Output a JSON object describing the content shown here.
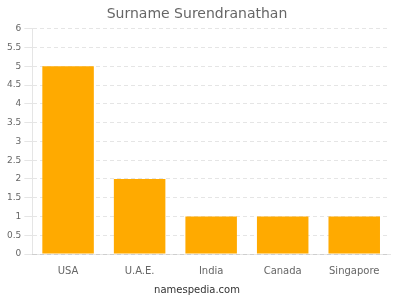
{
  "chart_data": {
    "type": "bar",
    "title": "Surname Surendranathan",
    "categories": [
      "USA",
      "U.A.E.",
      "India",
      "Canada",
      "Singapore"
    ],
    "values": [
      5,
      2,
      1,
      1,
      1
    ],
    "color": "#FFAA00",
    "ylim": [
      0,
      6
    ],
    "yticks": [
      0,
      0.5,
      1,
      1.5,
      2,
      2.5,
      3,
      3.5,
      4,
      4.5,
      5,
      5.5,
      6
    ],
    "grid": true,
    "annotations": [
      "namespedia.com"
    ]
  }
}
